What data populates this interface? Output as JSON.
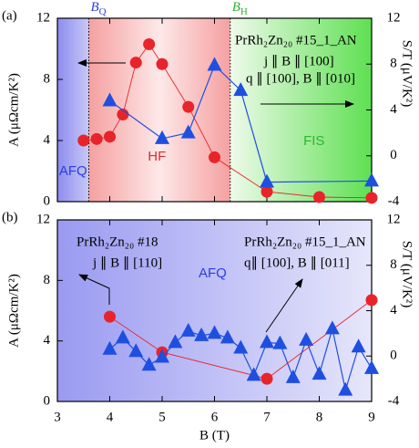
{
  "chart_data": [
    {
      "type": "line",
      "panel_label": "(a)",
      "xlim": [
        3,
        9
      ],
      "ylim": [
        0,
        12
      ],
      "yticks": [
        0,
        4,
        8,
        12
      ],
      "y2lim": [
        -4,
        12
      ],
      "y2ticks": [
        -4,
        0,
        4,
        8,
        12
      ],
      "ylabel": "A (μΩcm/K²)",
      "y2label": "S/T (μV/K²)",
      "series": [
        {
          "marker": "circle",
          "color": "#e8242a",
          "x": [
            3.5,
            3.75,
            4.0,
            4.25,
            4.5,
            4.75,
            5.0,
            5.5,
            6.0,
            7.0,
            8.0,
            9.0
          ],
          "values": [
            4.0,
            4.1,
            4.25,
            5.7,
            9.1,
            10.3,
            9.0,
            6.2,
            2.9,
            0.65,
            0.3,
            0.25
          ]
        },
        {
          "marker": "triangle",
          "color": "#1f4fe0",
          "axis": "y2",
          "x": [
            4.0,
            5.0,
            5.5,
            6.0,
            6.5,
            7.0,
            9.0
          ],
          "values": [
            4.8,
            1.5,
            2.0,
            7.9,
            5.7,
            -2.3,
            -2.2
          ]
        }
      ],
      "regions": [
        {
          "label": "AFQ",
          "from": 3,
          "to": 3.6,
          "color": "#2a3ee0"
        },
        {
          "label": "HF",
          "from": 3.6,
          "to": 6.3,
          "color": "#e8242a"
        },
        {
          "label": "FIS",
          "from": 6.3,
          "to": 9,
          "color": "#2fb52f"
        }
      ],
      "markers": [
        {
          "symbol": "B",
          "subscript": "Q",
          "x": 3.6,
          "color": "#2a3ee0"
        },
        {
          "symbol": "B",
          "subscript": "H",
          "x": 6.3,
          "color": "#2fb52f"
        }
      ],
      "annotations": [
        "PrRh₂Zn₂₀ #15_1_AN",
        "j ∥ B ∥ [100]",
        "q ∥ [100], B ∥ [010]"
      ]
    },
    {
      "type": "line",
      "panel_label": "(b)",
      "xlim": [
        3,
        9
      ],
      "xticks": [
        3,
        4,
        5,
        6,
        7,
        8,
        9
      ],
      "xlabel": "B (T)",
      "ylim": [
        0,
        12
      ],
      "yticks": [
        0,
        4,
        8,
        12
      ],
      "y2lim": [
        -4,
        12
      ],
      "y2ticks": [
        -4,
        0,
        4,
        8,
        12
      ],
      "ylabel": "A (μΩcm/K²)",
      "y2label": "S/T (μV/K²)",
      "series": [
        {
          "marker": "circle",
          "color": "#e8242a",
          "x": [
            4,
            5,
            7,
            9
          ],
          "values": [
            5.6,
            3.25,
            1.5,
            6.7
          ]
        },
        {
          "marker": "triangle",
          "color": "#1f4fe0",
          "axis": "y2",
          "x": [
            4.0,
            4.25,
            4.5,
            4.75,
            5.0,
            5.25,
            5.5,
            5.75,
            6.0,
            6.25,
            6.5,
            6.75,
            7.0,
            7.25,
            7.5,
            7.75,
            8.0,
            8.25,
            8.5,
            8.75,
            9.0
          ],
          "values": [
            0.6,
            1.6,
            0.4,
            -0.8,
            -0.1,
            1.2,
            2.2,
            1.8,
            2.0,
            1.6,
            0.7,
            -1.7,
            1.2,
            1.1,
            -1.9,
            1.4,
            -1.6,
            2.4,
            -3.0,
            0.8,
            -1.1
          ]
        }
      ],
      "annotations": [
        "PrRh₂Zn₂₀ #18",
        "j ∥ B ∥ [110]",
        "AFQ",
        "PrRh₂Zn₂₀ #15_1_AN",
        "q∥ [100], B ∥ [011]"
      ]
    }
  ]
}
